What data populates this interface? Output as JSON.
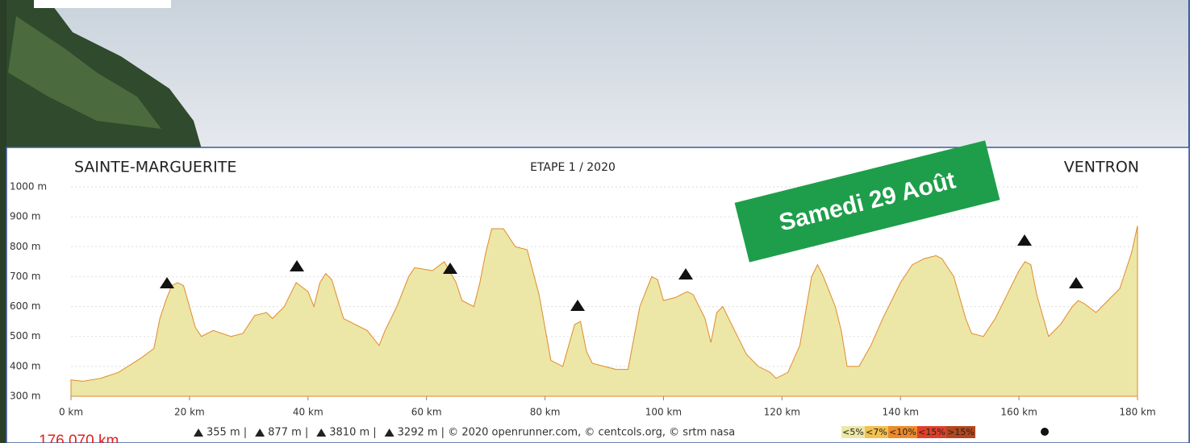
{
  "chart_data": {
    "type": "area",
    "title_left": "SAINTE-MARGUERITE",
    "title_center": "ETAPE 1 / 2020",
    "title_right": "VENTRON",
    "banner": "Samedi 29 Août",
    "color": "#ece7a6",
    "edge_color": "#e08a2c",
    "x": [
      0,
      2,
      5,
      8,
      12,
      14,
      15,
      16,
      17,
      18,
      19,
      20,
      21,
      22,
      24,
      27,
      29,
      31,
      33,
      34,
      36,
      38,
      40,
      41,
      42,
      43,
      44,
      46,
      48,
      50,
      52,
      53,
      55,
      57,
      58,
      61,
      63,
      65,
      66,
      68,
      69,
      70,
      71,
      73,
      75,
      77,
      79,
      81,
      83,
      85,
      86,
      87,
      88,
      90,
      92,
      94,
      96,
      98,
      99,
      100,
      102,
      104,
      105,
      107,
      108,
      109,
      110,
      112,
      114,
      116,
      118,
      119,
      121,
      123,
      125,
      126,
      127,
      129,
      130,
      131,
      133,
      135,
      137,
      140,
      142,
      144,
      146,
      147,
      149,
      151,
      152,
      154,
      156,
      158,
      160,
      161,
      162,
      163,
      165,
      167,
      169,
      170,
      171,
      173,
      175,
      177,
      179,
      180
    ],
    "values": [
      355,
      350,
      360,
      380,
      430,
      460,
      560,
      620,
      670,
      680,
      670,
      600,
      530,
      500,
      520,
      500,
      510,
      570,
      580,
      560,
      600,
      680,
      650,
      600,
      680,
      710,
      690,
      560,
      540,
      520,
      470,
      520,
      600,
      700,
      730,
      720,
      750,
      680,
      620,
      600,
      680,
      780,
      860,
      860,
      800,
      790,
      640,
      420,
      400,
      540,
      550,
      450,
      410,
      400,
      390,
      390,
      600,
      700,
      690,
      620,
      630,
      650,
      640,
      560,
      480,
      580,
      600,
      520,
      440,
      400,
      380,
      360,
      380,
      470,
      700,
      740,
      700,
      600,
      520,
      400,
      400,
      470,
      560,
      680,
      740,
      760,
      770,
      760,
      700,
      560,
      510,
      500,
      560,
      640,
      720,
      750,
      740,
      640,
      500,
      540,
      600,
      620,
      610,
      580,
      620,
      660,
      780,
      870
    ],
    "xlim": [
      0,
      180
    ],
    "ylim": [
      300,
      1000
    ],
    "xticks": [
      {
        "value": 0,
        "label": "0 km"
      },
      {
        "value": 20,
        "label": "20 km"
      },
      {
        "value": 40,
        "label": "40 km"
      },
      {
        "value": 60,
        "label": "60 km"
      },
      {
        "value": 80,
        "label": "80 km"
      },
      {
        "value": 100,
        "label": "100 km"
      },
      {
        "value": 120,
        "label": "120 km"
      },
      {
        "value": 140,
        "label": "140 km"
      },
      {
        "value": 160,
        "label": "160 km"
      },
      {
        "value": 180,
        "label": "180 km"
      }
    ],
    "yticks": [
      {
        "value": 300,
        "label": "300 m"
      },
      {
        "value": 400,
        "label": "400 m"
      },
      {
        "value": 500,
        "label": "500 m"
      },
      {
        "value": 600,
        "label": "600 m"
      },
      {
        "value": 700,
        "label": "700 m"
      },
      {
        "value": 800,
        "label": "800 m"
      },
      {
        "value": 900,
        "label": "900 m"
      },
      {
        "value": 1000,
        "label": "1000 m"
      }
    ],
    "grid": true,
    "distance": "176,070 km",
    "stats": [
      "355 m |",
      "877 m |",
      "3810 m |",
      "3292 m | © 2020 openrunner.com, © centcols.org, © srtm nasa"
    ],
    "legend": [
      {
        "label": "<5%",
        "color": "#ece7a6"
      },
      {
        "label": "<7%",
        "color": "#f2c14e"
      },
      {
        "label": "<10%",
        "color": "#ef8a2a"
      },
      {
        "label": "<15%",
        "color": "#e0402a"
      },
      {
        "label": ">15%",
        "color": "#b3471e"
      }
    ]
  }
}
